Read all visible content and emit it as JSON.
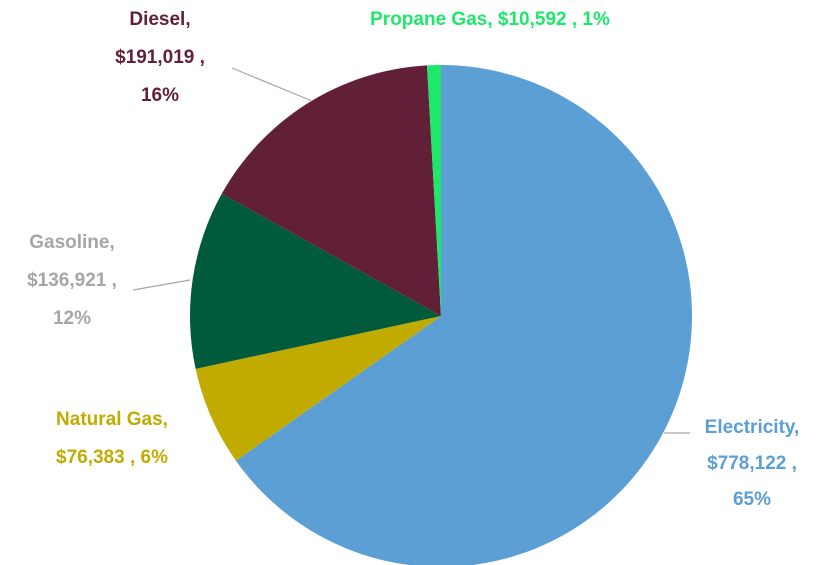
{
  "chart_data": {
    "type": "pie",
    "values": [
      778122,
      76383,
      136921,
      191019,
      10592
    ],
    "value_labels": [
      [
        "Electricity,",
        "$778,122 ,",
        "65%"
      ],
      [
        "Natural Gas,",
        "$76,383 , 6%"
      ],
      [
        "Gasoline,",
        "$136,921 ,",
        "12%"
      ],
      [
        "Diesel,",
        "$191,019 ,",
        "16%"
      ],
      [
        "Propane Gas,  $10,592 , 1%"
      ]
    ],
    "colors": [
      "#5b9fd4",
      "#c2ab00",
      "#005a3c",
      "#621f38",
      "#1ee86a"
    ],
    "label_colors": [
      "#5b9fd4",
      "#c2ab00",
      "#a6a6a6",
      "#621f38",
      "#1ee86a"
    ]
  }
}
